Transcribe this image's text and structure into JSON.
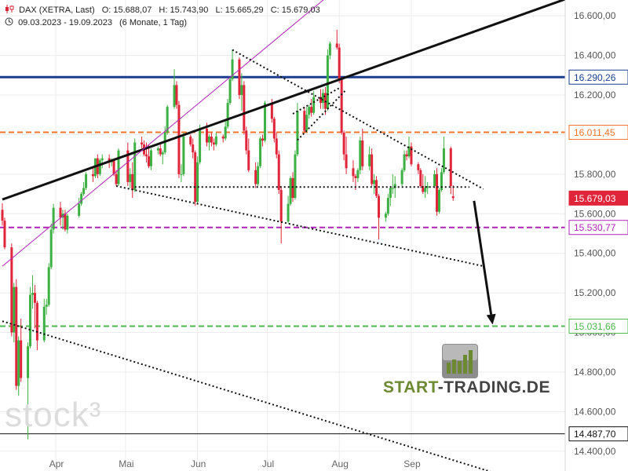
{
  "header": {
    "symbol_icon": "candlestick-icon",
    "title": "DAX (XETRA, Last)",
    "ohlc": {
      "o_label": "O:",
      "o": "15.688,07",
      "h_label": "H:",
      "h": "15.743,90",
      "l_label": "L:",
      "l": "15.665,29",
      "c_label": "C:",
      "c": "15.679,03"
    },
    "clock_icon": "clock-icon",
    "range": "09.03.2023 - 19.09.2023",
    "period": "(6 Monate, 1 Tag)"
  },
  "watermark": "stock³",
  "brand": {
    "part1": "START",
    "sep": "-",
    "part2": "TRADING.DE",
    "logo_icon": "rising-bars-logo-icon"
  },
  "colors": {
    "up": "#3cb043",
    "down": "#e0243a",
    "blue_line": "#1c3d8f",
    "orange_line": "#f0742b",
    "purple_line": "#b023b8",
    "green_line": "#4cb84c",
    "trend_line": "#111111",
    "price_badge": "#e0243a"
  },
  "chart_data": {
    "type": "candlestick",
    "x_range": [
      "09.03.2023",
      "19.09.2023"
    ],
    "ylim": [
      14300,
      16680
    ],
    "yticks": [
      14400,
      14600,
      14800,
      15000,
      15200,
      15400,
      15600,
      15800,
      16000,
      16200,
      16400,
      16600
    ],
    "ytick_labels": [
      "14.400,00",
      "14.600,00",
      "14.800,00",
      "15.000,00",
      "15.200,00",
      "15.400,00",
      "15.600,00",
      "15.800,00",
      "16.000,00",
      "16.200,00",
      "16.400,00",
      "16.600,00"
    ],
    "xticks": [
      {
        "label": "Apr",
        "date": "2023-04-01"
      },
      {
        "label": "Mai",
        "date": "2023-05-01"
      },
      {
        "label": "Jun",
        "date": "2023-06-01"
      },
      {
        "label": "Jul",
        "date": "2023-07-01"
      },
      {
        "label": "Aug",
        "date": "2023-08-01"
      },
      {
        "label": "Sep",
        "date": "2023-09-01"
      }
    ],
    "candles": [
      [
        "2023-03-09",
        15620,
        15653,
        15540,
        15565
      ],
      [
        "2023-03-10",
        15565,
        15580,
        15420,
        15430
      ],
      [
        "2023-03-13",
        15430,
        15450,
        14980,
        15000
      ],
      [
        "2023-03-14",
        15000,
        15250,
        14950,
        15230
      ],
      [
        "2023-03-15",
        15230,
        15270,
        14710,
        14730
      ],
      [
        "2023-03-16",
        14730,
        14980,
        14680,
        14960
      ],
      [
        "2023-03-17",
        14960,
        15070,
        14750,
        14770
      ],
      [
        "2023-03-20",
        14770,
        14950,
        14460,
        14930
      ],
      [
        "2023-03-21",
        14930,
        15230,
        14920,
        15190
      ],
      [
        "2023-03-22",
        15190,
        15290,
        15120,
        15200
      ],
      [
        "2023-03-23",
        15200,
        15240,
        15020,
        15150
      ],
      [
        "2023-03-24",
        15150,
        15160,
        14910,
        14960
      ],
      [
        "2023-03-27",
        14960,
        15170,
        14950,
        15130
      ],
      [
        "2023-03-28",
        15130,
        15170,
        15090,
        15140
      ],
      [
        "2023-03-29",
        15140,
        15350,
        15130,
        15330
      ],
      [
        "2023-03-30",
        15330,
        15550,
        15320,
        15520
      ],
      [
        "2023-03-31",
        15520,
        15650,
        15500,
        15630
      ],
      [
        "2023-04-03",
        15630,
        15660,
        15540,
        15580
      ],
      [
        "2023-04-04",
        15580,
        15620,
        15520,
        15600
      ],
      [
        "2023-04-05",
        15600,
        15620,
        15510,
        15520
      ],
      [
        "2023-04-06",
        15520,
        15600,
        15500,
        15590
      ],
      [
        "2023-04-11",
        15590,
        15680,
        15580,
        15650
      ],
      [
        "2023-04-12",
        15650,
        15710,
        15640,
        15700
      ],
      [
        "2023-04-13",
        15700,
        15760,
        15690,
        15730
      ],
      [
        "2023-04-14",
        15730,
        15810,
        15720,
        15800
      ],
      [
        "2023-04-17",
        15800,
        15840,
        15760,
        15790
      ],
      [
        "2023-04-18",
        15790,
        15880,
        15780,
        15880
      ],
      [
        "2023-04-19",
        15880,
        15900,
        15780,
        15800
      ],
      [
        "2023-04-20",
        15800,
        15880,
        15790,
        15870
      ],
      [
        "2023-04-21",
        15870,
        15900,
        15830,
        15880
      ],
      [
        "2023-04-24",
        15880,
        15900,
        15830,
        15860
      ],
      [
        "2023-04-25",
        15860,
        15880,
        15840,
        15870
      ],
      [
        "2023-04-26",
        15870,
        15880,
        15790,
        15800
      ],
      [
        "2023-04-27",
        15800,
        15820,
        15740,
        15750
      ],
      [
        "2023-04-28",
        15750,
        15930,
        15740,
        15920
      ],
      [
        "2023-05-02",
        15920,
        15960,
        15740,
        15760
      ],
      [
        "2023-05-03",
        15760,
        15830,
        15730,
        15800
      ],
      [
        "2023-05-04",
        15800,
        15860,
        15680,
        15720
      ],
      [
        "2023-05-05",
        15720,
        15980,
        15710,
        15960
      ],
      [
        "2023-05-08",
        15960,
        15990,
        15930,
        15950
      ],
      [
        "2023-05-09",
        15950,
        15970,
        15890,
        15900
      ],
      [
        "2023-05-10",
        15900,
        15960,
        15860,
        15890
      ],
      [
        "2023-05-11",
        15890,
        15950,
        15830,
        15840
      ],
      [
        "2023-05-12",
        15840,
        15930,
        15820,
        15920
      ],
      [
        "2023-05-15",
        15920,
        15940,
        15900,
        15930
      ],
      [
        "2023-05-16",
        15930,
        15950,
        15890,
        15900
      ],
      [
        "2023-05-17",
        15900,
        15920,
        15850,
        15910
      ],
      [
        "2023-05-18",
        15910,
        16040,
        15900,
        16010
      ],
      [
        "2023-05-19",
        16010,
        16150,
        16000,
        16140
      ],
      [
        "2023-05-22",
        16140,
        16330,
        16130,
        16250
      ],
      [
        "2023-05-23",
        16250,
        16270,
        16130,
        16150
      ],
      [
        "2023-05-24",
        16150,
        16170,
        15780,
        15800
      ],
      [
        "2023-05-25",
        15800,
        15850,
        15760,
        15800
      ],
      [
        "2023-05-26",
        15800,
        16010,
        15790,
        15990
      ],
      [
        "2023-05-29",
        15990,
        16000,
        15940,
        15950
      ],
      [
        "2023-05-30",
        15950,
        15980,
        15880,
        15910
      ],
      [
        "2023-05-31",
        15910,
        15920,
        15640,
        15660
      ],
      [
        "2023-06-01",
        15660,
        15890,
        15650,
        15860
      ],
      [
        "2023-06-02",
        15860,
        16050,
        15850,
        16030
      ],
      [
        "2023-06-05",
        16030,
        16060,
        15940,
        15960
      ],
      [
        "2023-06-06",
        15960,
        16000,
        15920,
        15990
      ],
      [
        "2023-06-07",
        15990,
        16010,
        15940,
        15960
      ],
      [
        "2023-06-08",
        15960,
        15980,
        15920,
        15950
      ],
      [
        "2023-06-09",
        15950,
        16010,
        15940,
        15990
      ],
      [
        "2023-06-12",
        15990,
        16000,
        15960,
        15980
      ],
      [
        "2023-06-13",
        15980,
        16070,
        15970,
        16040
      ],
      [
        "2023-06-14",
        16040,
        16180,
        16030,
        16160
      ],
      [
        "2023-06-15",
        16160,
        16290,
        16150,
        16280
      ],
      [
        "2023-06-16",
        16280,
        16430,
        16270,
        16380
      ],
      [
        "2023-06-19",
        16380,
        16390,
        16180,
        16200
      ],
      [
        "2023-06-20",
        16200,
        16310,
        16120,
        16250
      ],
      [
        "2023-06-21",
        16250,
        16270,
        16000,
        16020
      ],
      [
        "2023-06-22",
        16020,
        16040,
        15900,
        15920
      ],
      [
        "2023-06-23",
        15920,
        15980,
        15810,
        15820
      ],
      [
        "2023-06-26",
        15820,
        15860,
        15730,
        15750
      ],
      [
        "2023-06-27",
        15750,
        15860,
        15740,
        15840
      ],
      [
        "2023-06-28",
        15840,
        15990,
        15830,
        15980
      ],
      [
        "2023-06-29",
        15980,
        16000,
        15940,
        15970
      ],
      [
        "2023-06-30",
        15970,
        16170,
        15960,
        16160
      ],
      [
        "2023-07-03",
        16160,
        16180,
        16060,
        16080
      ],
      [
        "2023-07-04",
        16080,
        16090,
        15960,
        15980
      ],
      [
        "2023-07-05",
        15980,
        16010,
        15880,
        15900
      ],
      [
        "2023-07-06",
        15900,
        15920,
        15700,
        15720
      ],
      [
        "2023-07-07",
        15720,
        15740,
        15450,
        15560
      ],
      [
        "2023-07-10",
        15560,
        15690,
        15550,
        15650
      ],
      [
        "2023-07-11",
        15650,
        15790,
        15640,
        15780
      ],
      [
        "2023-07-12",
        15780,
        15810,
        15660,
        15680
      ],
      [
        "2023-07-13",
        15680,
        15920,
        15670,
        15900
      ],
      [
        "2023-07-14",
        15900,
        16160,
        15890,
        16120
      ],
      [
        "2023-07-17",
        16120,
        16140,
        16010,
        16020
      ],
      [
        "2023-07-18",
        16020,
        16140,
        16010,
        16100
      ],
      [
        "2023-07-19",
        16100,
        16150,
        16080,
        16140
      ],
      [
        "2023-07-20",
        16140,
        16180,
        16090,
        16110
      ],
      [
        "2023-07-21",
        16110,
        16220,
        16100,
        16190
      ],
      [
        "2023-07-24",
        16190,
        16230,
        16130,
        16160
      ],
      [
        "2023-07-25",
        16160,
        16230,
        16130,
        16210
      ],
      [
        "2023-07-26",
        16210,
        16240,
        16100,
        16130
      ],
      [
        "2023-07-27",
        16130,
        16430,
        16120,
        16400
      ],
      [
        "2023-07-28",
        16400,
        16470,
        16380,
        16460
      ],
      [
        "2023-07-31",
        16460,
        16530,
        16430,
        16440
      ],
      [
        "2023-08-01",
        16440,
        16460,
        16260,
        16280
      ],
      [
        "2023-08-02",
        16280,
        16290,
        16000,
        16010
      ],
      [
        "2023-08-03",
        16010,
        16020,
        15870,
        15900
      ],
      [
        "2023-08-04",
        15900,
        15990,
        15800,
        15830
      ],
      [
        "2023-08-07",
        15830,
        15870,
        15760,
        15790
      ],
      [
        "2023-08-08",
        15790,
        15800,
        15720,
        15780
      ],
      [
        "2023-08-09",
        15780,
        15830,
        15760,
        15820
      ],
      [
        "2023-08-10",
        15820,
        15990,
        15800,
        15970
      ],
      [
        "2023-08-11",
        15970,
        16030,
        15820,
        15840
      ],
      [
        "2023-08-14",
        15840,
        15940,
        15820,
        15900
      ],
      [
        "2023-08-15",
        15900,
        15930,
        15740,
        15750
      ],
      [
        "2023-08-16",
        15750,
        15800,
        15700,
        15770
      ],
      [
        "2023-08-17",
        15770,
        15790,
        15680,
        15690
      ],
      [
        "2023-08-18",
        15690,
        15700,
        15470,
        15580
      ],
      [
        "2023-08-21",
        15580,
        15610,
        15560,
        15600
      ],
      [
        "2023-08-22",
        15600,
        15700,
        15590,
        15680
      ],
      [
        "2023-08-23",
        15680,
        15740,
        15640,
        15730
      ],
      [
        "2023-08-24",
        15730,
        15800,
        15700,
        15730
      ],
      [
        "2023-08-25",
        15730,
        15790,
        15680,
        15750
      ],
      [
        "2023-08-28",
        15750,
        15830,
        15740,
        15820
      ],
      [
        "2023-08-29",
        15820,
        15920,
        15810,
        15900
      ],
      [
        "2023-08-30",
        15900,
        15920,
        15870,
        15890
      ],
      [
        "2023-08-31",
        15890,
        15990,
        15880,
        15940
      ],
      [
        "2023-09-01",
        15940,
        15960,
        15840,
        15850
      ],
      [
        "2023-09-04",
        15850,
        15860,
        15800,
        15820
      ],
      [
        "2023-09-05",
        15820,
        15830,
        15730,
        15740
      ],
      [
        "2023-09-06",
        15740,
        15800,
        15700,
        15710
      ],
      [
        "2023-09-07",
        15710,
        15790,
        15680,
        15730
      ],
      [
        "2023-09-08",
        15730,
        15760,
        15700,
        15740
      ],
      [
        "2023-09-11",
        15740,
        15820,
        15730,
        15800
      ],
      [
        "2023-09-12",
        15800,
        15830,
        15590,
        15610
      ],
      [
        "2023-09-13",
        15610,
        15730,
        15600,
        15720
      ],
      [
        "2023-09-14",
        15720,
        15830,
        15710,
        15810
      ],
      [
        "2023-09-15",
        15810,
        15990,
        15800,
        15930
      ],
      [
        "2023-09-18",
        15930,
        15940,
        15700,
        15740
      ],
      [
        "2023-09-19",
        15688.07,
        15743.9,
        15665.29,
        15679.03
      ]
    ],
    "horizontal_levels": [
      {
        "label": "16.290,26",
        "value": 16290.26,
        "color": "#1c3d8f",
        "style": "solid"
      },
      {
        "label": "16.011,45",
        "value": 16011.45,
        "color": "#f0742b",
        "style": "dashed"
      },
      {
        "label": "15.679,03",
        "value": 15679.03,
        "color": "#e0243a",
        "style": "current-price"
      },
      {
        "label": "15.530,77",
        "value": 15530.77,
        "color": "#b023b8",
        "style": "dashed"
      },
      {
        "label": "15.031,66",
        "value": 15031.66,
        "color": "#4cb84c",
        "style": "dashed"
      },
      {
        "label": "14.487,70",
        "value": 14487.7,
        "color": "#111111",
        "style": "solid"
      }
    ],
    "trend_lines": [
      {
        "name": "uptrend-resistance",
        "from": [
          "2023-03-09",
          15672
        ],
        "to": [
          "2023-11-06",
          16683
        ],
        "style": "solid",
        "color": "#111111"
      },
      {
        "name": "purple-support-trend",
        "from": [
          "2023-03-09",
          15335
        ],
        "to": [
          "2023-08-10",
          16835
        ],
        "style": "solid-thin",
        "color": "#b023b8"
      },
      {
        "name": "downtrend-upper",
        "from": [
          "2023-06-16",
          16428
        ],
        "to": [
          "2023-10-02",
          15725
        ],
        "style": "dotted",
        "color": "#111111"
      },
      {
        "name": "channel-lower",
        "from": [
          "2023-04-27",
          15740
        ],
        "to": [
          "2023-10-02",
          15335
        ],
        "style": "dotted",
        "color": "#111111"
      },
      {
        "name": "lower-long-trend",
        "from": [
          "2023-03-09",
          15057
        ],
        "to": [
          "2023-10-05",
          14297
        ],
        "style": "dotted",
        "color": "#111111"
      },
      {
        "name": "neckline",
        "from": [
          "2023-05-05",
          15735
        ],
        "to": [
          "2023-09-26",
          15735
        ],
        "style": "dotted",
        "color": "#111111"
      },
      {
        "name": "flag-upper",
        "from": [
          "2023-07-12",
          16105
        ],
        "to": [
          "2023-08-01",
          16235
        ],
        "style": "dotted",
        "color": "#111111"
      },
      {
        "name": "flag-lower",
        "from": [
          "2023-07-14",
          15972
        ],
        "to": [
          "2023-08-04",
          16227
        ],
        "style": "dotted",
        "color": "#111111"
      }
    ],
    "projection_arrow": {
      "from": [
        "2023-09-28",
        15665
      ],
      "to": [
        "2023-10-06",
        15040
      ]
    }
  }
}
